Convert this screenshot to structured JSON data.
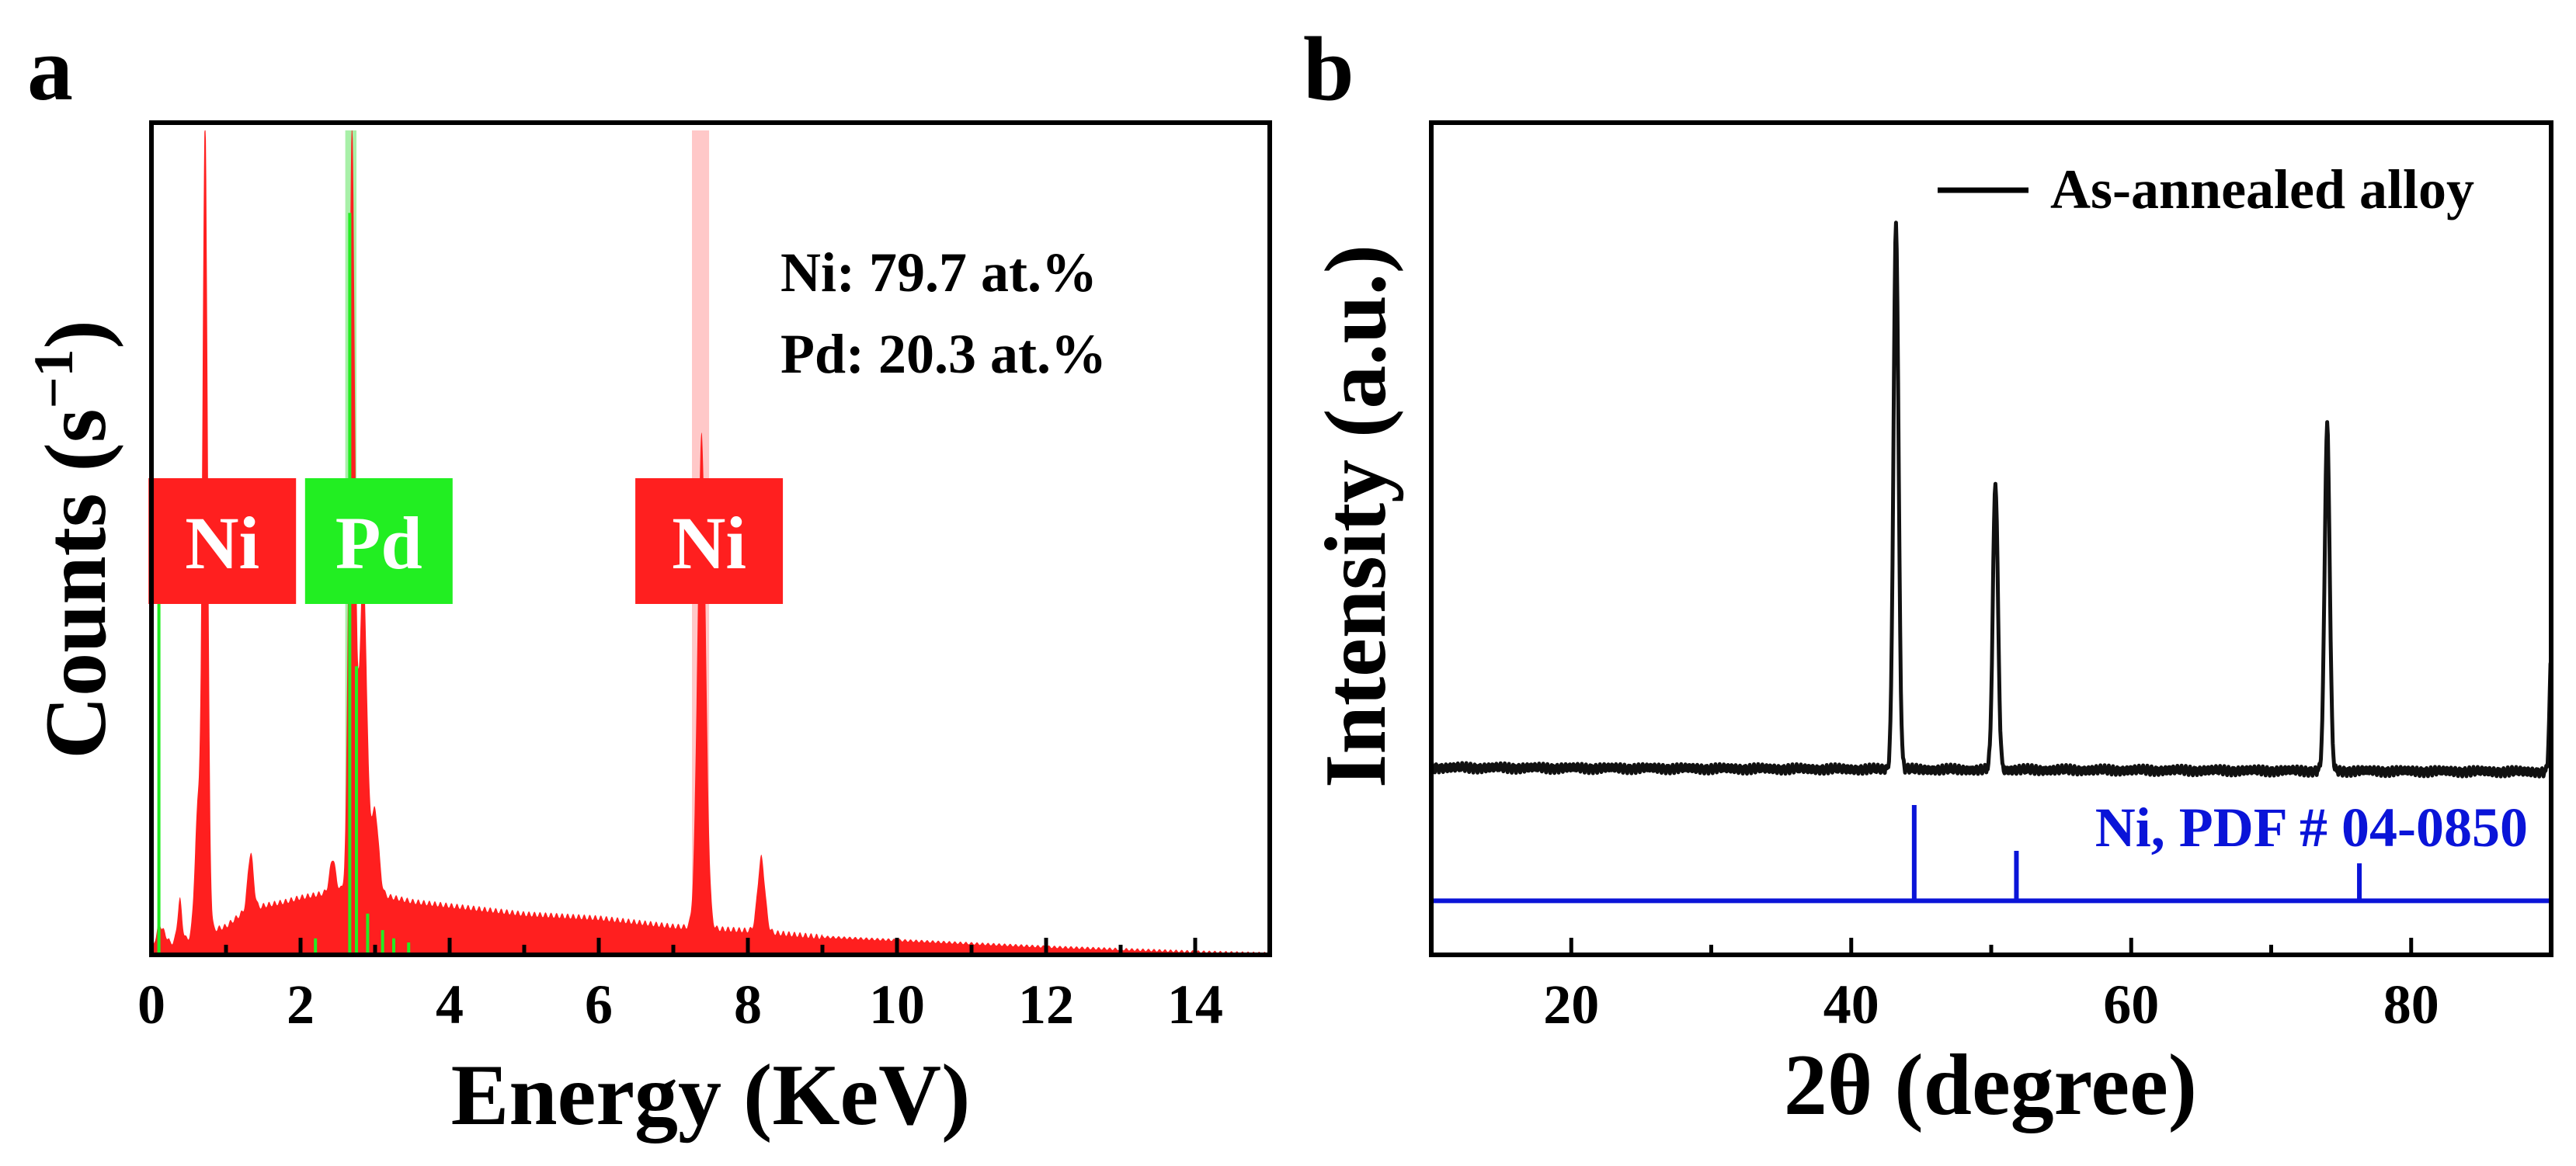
{
  "figure": {
    "panel_a_label": "a",
    "panel_b_label": "b"
  },
  "colors": {
    "axis": "#000000",
    "ni": "#ff1f1f",
    "ni_band": "#ffc8c8",
    "pd": "#22ee22",
    "pd_band": "#a8f0a8",
    "xrd": "#111111",
    "pdf": "#0a14d8"
  },
  "chart_data": [
    {
      "type": "area",
      "panel": "a",
      "title": "",
      "xlabel": "Energy (KeV)",
      "ylabel": "Counts (s−1)",
      "ylabel_text": "Counts (s",
      "ylabel_sup": "−1",
      "ylabel_close": ")",
      "xlim": [
        0,
        15
      ],
      "ylim": [
        0,
        100
      ],
      "x_ticks": [
        0,
        2,
        4,
        6,
        8,
        10,
        12,
        14
      ],
      "x_tick_labels": [
        "0",
        "2",
        "4",
        "6",
        "8",
        "10",
        "12",
        "14"
      ],
      "annotation_lines": [
        "Ni: 79.7 at.%",
        "Pd: 20.3 at.%"
      ],
      "element_labels": [
        {
          "text": "Ni",
          "element": "Ni",
          "energy": 0.95
        },
        {
          "text": "Pd",
          "element": "Pd",
          "energy": 3.05
        },
        {
          "text": "Ni",
          "element": "Ni",
          "energy": 7.48
        }
      ],
      "highlight_bands": [
        {
          "element": "Pd",
          "x0": 2.6,
          "x1": 2.75
        },
        {
          "element": "Ni",
          "x0": 7.25,
          "x1": 7.48
        }
      ],
      "background": [
        [
          0,
          0
        ],
        [
          0.1,
          4
        ],
        [
          0.25,
          1.5
        ],
        [
          0.5,
          2
        ],
        [
          0.8,
          3
        ],
        [
          1.0,
          3.5
        ],
        [
          1.2,
          5
        ],
        [
          1.5,
          6
        ],
        [
          1.8,
          6.5
        ],
        [
          2.0,
          7
        ],
        [
          2.3,
          7.5
        ],
        [
          2.6,
          8
        ],
        [
          3.0,
          7.5
        ],
        [
          3.5,
          6.5
        ],
        [
          4.0,
          6
        ],
        [
          5.0,
          5
        ],
        [
          6.0,
          4.5
        ],
        [
          7.0,
          3.5
        ],
        [
          8.0,
          3
        ],
        [
          9.0,
          2.2
        ],
        [
          10.0,
          1.8
        ],
        [
          11.0,
          1.4
        ],
        [
          12.0,
          1.0
        ],
        [
          13.0,
          0.7
        ],
        [
          14.0,
          0.4
        ],
        [
          15.0,
          0.2
        ]
      ],
      "peaks": [
        {
          "element": "Ni",
          "energy": 0.72,
          "height": 100,
          "width": 0.035
        },
        {
          "element": "Ni",
          "energy": 0.62,
          "height": 15,
          "width": 0.04
        },
        {
          "element": "Ni",
          "energy": 0.38,
          "height": 5,
          "width": 0.03
        },
        {
          "element": "Ni",
          "energy": 1.33,
          "height": 7,
          "width": 0.04
        },
        {
          "element": "Pd",
          "energy": 2.69,
          "height": 93,
          "width": 0.04
        },
        {
          "element": "Pd",
          "energy": 2.84,
          "height": 40,
          "width": 0.05
        },
        {
          "element": "Pd",
          "energy": 3.0,
          "height": 10,
          "width": 0.05
        },
        {
          "element": "Pd",
          "energy": 2.43,
          "height": 4,
          "width": 0.04
        },
        {
          "element": "Ni",
          "energy": 7.38,
          "height": 60,
          "width": 0.055
        },
        {
          "element": "Ni",
          "energy": 8.18,
          "height": 9,
          "width": 0.05
        }
      ],
      "pd_marker_lines": [
        {
          "energy": 0.1,
          "height": 45
        },
        {
          "energy": 2.2,
          "height": 2
        },
        {
          "energy": 2.66,
          "height": 90
        },
        {
          "energy": 2.75,
          "height": 35
        },
        {
          "energy": 2.9,
          "height": 5
        },
        {
          "energy": 3.1,
          "height": 3
        },
        {
          "energy": 3.25,
          "height": 2
        },
        {
          "energy": 3.45,
          "height": 1.5
        }
      ]
    },
    {
      "type": "line",
      "panel": "b",
      "title": "",
      "xlabel": "2θ (degree)",
      "ylabel": "Intensity (a.u.)",
      "xlim": [
        10,
        90
      ],
      "ylim": [
        0,
        100
      ],
      "x_ticks": [
        20,
        40,
        60,
        80
      ],
      "x_tick_labels": [
        "20",
        "40",
        "60",
        "80"
      ],
      "series": [
        {
          "name": "As-annealed alloy",
          "baseline": 22.5,
          "peaks": [
            {
              "x": 43.2,
              "height": 88
            },
            {
              "x": 50.3,
              "height": 57
            },
            {
              "x": 74.0,
              "height": 64
            },
            {
              "x": 90.0,
              "height": 36
            }
          ]
        }
      ],
      "legend": {
        "location": "top-right",
        "entries": [
          "As-annealed alloy"
        ]
      },
      "reference": {
        "label": "Ni, PDF # 04-0850",
        "baseline": 6.5,
        "lines": [
          {
            "x": 44.5,
            "height": 18
          },
          {
            "x": 51.8,
            "height": 12.5
          },
          {
            "x": 76.3,
            "height": 11
          }
        ]
      }
    }
  ]
}
